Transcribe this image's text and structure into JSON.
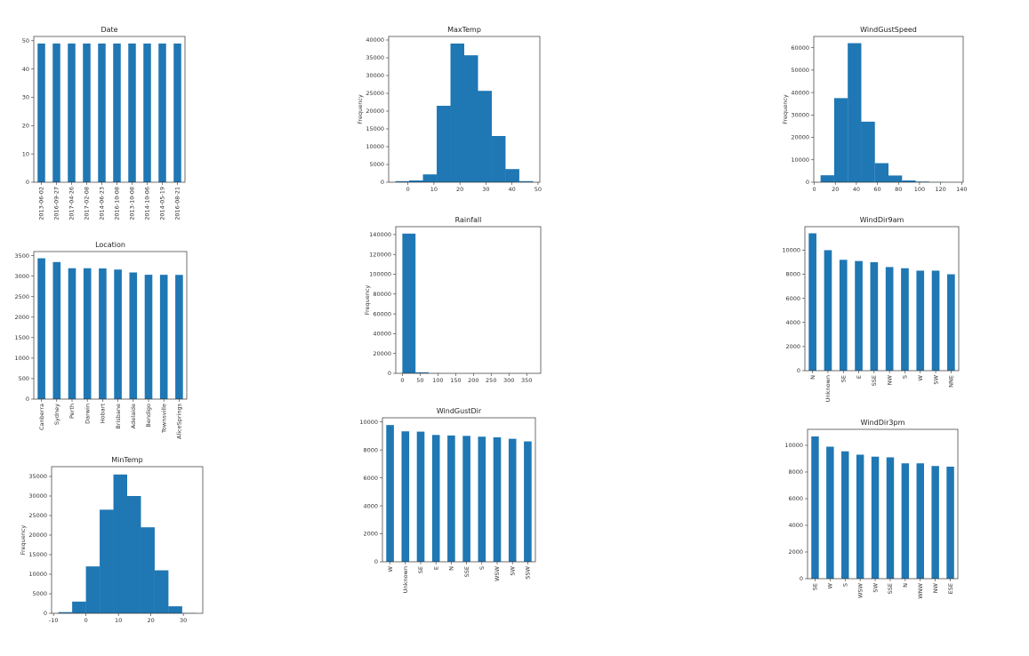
{
  "chart_data": [
    {
      "type": "bar",
      "title": "Date",
      "color": "#1f77b4",
      "categories": [
        "2013-06-02",
        "2016-09-27",
        "2017-04-26",
        "2017-02-08",
        "2014-06-23",
        "2016-10-08",
        "2013-10-08",
        "2014-10-06",
        "2014-05-19",
        "2016-08-21"
      ],
      "values": [
        49,
        49,
        49,
        49,
        49,
        49,
        49,
        49,
        49,
        49
      ],
      "ylim": [
        0,
        51.5
      ],
      "yticks": [
        0,
        10,
        20,
        30,
        40,
        50
      ]
    },
    {
      "type": "histogram",
      "title": "MaxTemp",
      "ylabel": "Frequency",
      "color": "#1f77b4",
      "bins": [
        -4.8,
        0.49,
        5.78,
        11.07,
        16.36,
        21.65,
        26.94,
        32.23,
        37.52,
        42.81,
        48.1
      ],
      "values": [
        300,
        500,
        2200,
        21500,
        39000,
        35700,
        25700,
        13000,
        3700,
        300
      ],
      "xlim": [
        -7.4,
        50.7
      ],
      "xticks": [
        0,
        10,
        20,
        30,
        40,
        50
      ],
      "ylim": [
        0,
        41000
      ],
      "yticks": [
        0,
        5000,
        10000,
        15000,
        20000,
        25000,
        30000,
        35000,
        40000
      ]
    },
    {
      "type": "histogram",
      "title": "WindGustSpeed",
      "ylabel": "Frequency",
      "color": "#1f77b4",
      "bins": [
        6,
        18.9,
        31.8,
        44.7,
        57.6,
        70.5,
        83.4,
        96.3,
        109.2,
        122.1,
        135
      ],
      "values": [
        3100,
        37500,
        62000,
        27000,
        8500,
        3000,
        800,
        300,
        80,
        20
      ],
      "xlim": [
        -0.45,
        141.45
      ],
      "xticks": [
        0,
        20,
        40,
        60,
        80,
        100,
        120,
        140
      ],
      "ylim": [
        0,
        65000
      ],
      "yticks": [
        0,
        10000,
        20000,
        30000,
        40000,
        50000,
        60000
      ]
    },
    {
      "type": "bar",
      "title": "Location",
      "color": "#1f77b4",
      "categories": [
        "Canberra",
        "Sydney",
        "Perth",
        "Darwin",
        "Hobart",
        "Brisbane",
        "Adelaide",
        "Bendigo",
        "Townsville",
        "AliceSprings"
      ],
      "values": [
        3436,
        3344,
        3193,
        3193,
        3188,
        3161,
        3090,
        3034,
        3033,
        3031
      ],
      "ylim": [
        0,
        3600
      ],
      "yticks": [
        0,
        500,
        1000,
        1500,
        2000,
        2500,
        3000,
        3500
      ]
    },
    {
      "type": "histogram",
      "title": "Rainfall",
      "ylabel": "Frequency",
      "color": "#1f77b4",
      "bins": [
        0,
        37.1,
        74.2,
        111.3,
        148.4,
        185.5,
        222.6,
        259.7,
        296.8,
        333.9,
        371
      ],
      "values": [
        141000,
        1000,
        150,
        30,
        10,
        3,
        1,
        0,
        0,
        1
      ],
      "xlim": [
        -18.5,
        389.5
      ],
      "xticks": [
        0,
        50,
        100,
        150,
        200,
        250,
        300,
        350
      ],
      "ylim": [
        0,
        148000
      ],
      "yticks": [
        0,
        20000,
        40000,
        60000,
        80000,
        100000,
        120000,
        140000
      ]
    },
    {
      "type": "bar",
      "title": "WindDir9am",
      "color": "#1f77b4",
      "categories": [
        "N",
        "Unknown",
        "SE",
        "E",
        "SSE",
        "NW",
        "S",
        "W",
        "SW",
        "NNE"
      ],
      "values": [
        11400,
        10000,
        9200,
        9100,
        9000,
        8600,
        8500,
        8300,
        8300,
        8000
      ],
      "ylim": [
        0,
        11950
      ],
      "yticks": [
        0,
        2000,
        4000,
        6000,
        8000,
        10000
      ]
    },
    {
      "type": "histogram",
      "title": "MinTemp",
      "ylabel": "Frequency",
      "color": "#1f77b4",
      "bins": [
        -8.5,
        -4.26,
        -0.02,
        4.22,
        8.46,
        12.7,
        16.94,
        21.18,
        25.42,
        29.66,
        33.9
      ],
      "values": [
        300,
        3000,
        12000,
        26500,
        35500,
        30000,
        22000,
        11000,
        1800,
        100
      ],
      "xlim": [
        -10.6,
        36
      ],
      "xticks": [
        -10,
        0,
        10,
        20,
        30
      ],
      "ylim": [
        0,
        37500
      ],
      "yticks": [
        0,
        5000,
        10000,
        15000,
        20000,
        25000,
        30000,
        35000
      ]
    },
    {
      "type": "bar",
      "title": "WindGustDir",
      "color": "#1f77b4",
      "categories": [
        "W",
        "Unknown",
        "SE",
        "E",
        "N",
        "SSE",
        "S",
        "WSW",
        "SW",
        "SSW"
      ],
      "values": [
        9780,
        9330,
        9309,
        9071,
        9033,
        9005,
        8949,
        8901,
        8797,
        8610
      ],
      "ylim": [
        0,
        10300
      ],
      "yticks": [
        0,
        2000,
        4000,
        6000,
        8000,
        10000
      ]
    },
    {
      "type": "bar",
      "title": "WindDir3pm",
      "color": "#1f77b4",
      "categories": [
        "SE",
        "W",
        "S",
        "WSW",
        "SW",
        "SSE",
        "N",
        "WNW",
        "NW",
        "ESE"
      ],
      "values": [
        10666,
        9900,
        9550,
        9300,
        9150,
        9100,
        8650,
        8650,
        8450,
        8400
      ],
      "ylim": [
        0,
        11200
      ],
      "yticks": [
        0,
        2000,
        4000,
        6000,
        8000,
        10000
      ]
    }
  ]
}
